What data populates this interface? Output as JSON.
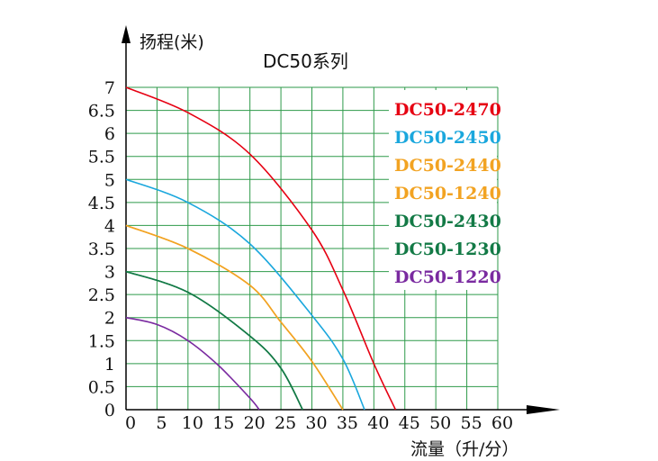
{
  "chart_data": {
    "type": "line",
    "title": "DC50系列",
    "xlabel": "流量（升/分）",
    "ylabel": "扬程(米)",
    "xlim": [
      0,
      60
    ],
    "ylim": [
      0,
      7
    ],
    "xticks": [
      "0",
      "5",
      "10",
      "15",
      "20",
      "25",
      "30",
      "35",
      "40",
      "45",
      "50",
      "55",
      "60"
    ],
    "yticks": [
      "0",
      "0.5",
      "1",
      "1.5",
      "2",
      "2.5",
      "3",
      "3.5",
      "4",
      "4.5",
      "5",
      "5.5",
      "6",
      "6.5",
      "7"
    ],
    "grid": true,
    "legend_position": "top-right",
    "series": [
      {
        "name": "DC50-2470",
        "color": "#e60012",
        "x": [
          0,
          10,
          20,
          30,
          35,
          40,
          43.5
        ],
        "y": [
          7,
          6.45,
          5.55,
          3.9,
          2.6,
          1.0,
          0
        ]
      },
      {
        "name": "DC50-2450",
        "color": "#1aa7dd",
        "x": [
          0,
          10,
          20,
          30,
          35,
          38.5
        ],
        "y": [
          5,
          4.5,
          3.6,
          2.05,
          1.1,
          0
        ]
      },
      {
        "name": "DC50-2440",
        "color": "#f2a322",
        "x": [
          0,
          10,
          20,
          25,
          30,
          35
        ],
        "y": [
          4,
          3.5,
          2.7,
          1.9,
          1.05,
          0
        ]
      },
      {
        "name": "DC50-1240",
        "color": "#f2a322",
        "x": [
          0,
          10,
          20,
          25,
          30,
          35
        ],
        "y": [
          4,
          3.5,
          2.7,
          1.9,
          1.05,
          0
        ]
      },
      {
        "name": "DC50-2430",
        "color": "#137a46",
        "x": [
          0,
          10,
          20,
          25,
          28.5
        ],
        "y": [
          3,
          2.55,
          1.6,
          0.9,
          0
        ]
      },
      {
        "name": "DC50-1230",
        "color": "#137a46",
        "x": [
          0,
          10,
          20,
          25,
          28.5
        ],
        "y": [
          3,
          2.55,
          1.6,
          0.9,
          0
        ]
      },
      {
        "name": "DC50-1220",
        "color": "#7a2aa0",
        "x": [
          0,
          5,
          10,
          15,
          20,
          21.5
        ],
        "y": [
          2,
          1.85,
          1.5,
          0.95,
          0.25,
          0
        ]
      }
    ]
  }
}
